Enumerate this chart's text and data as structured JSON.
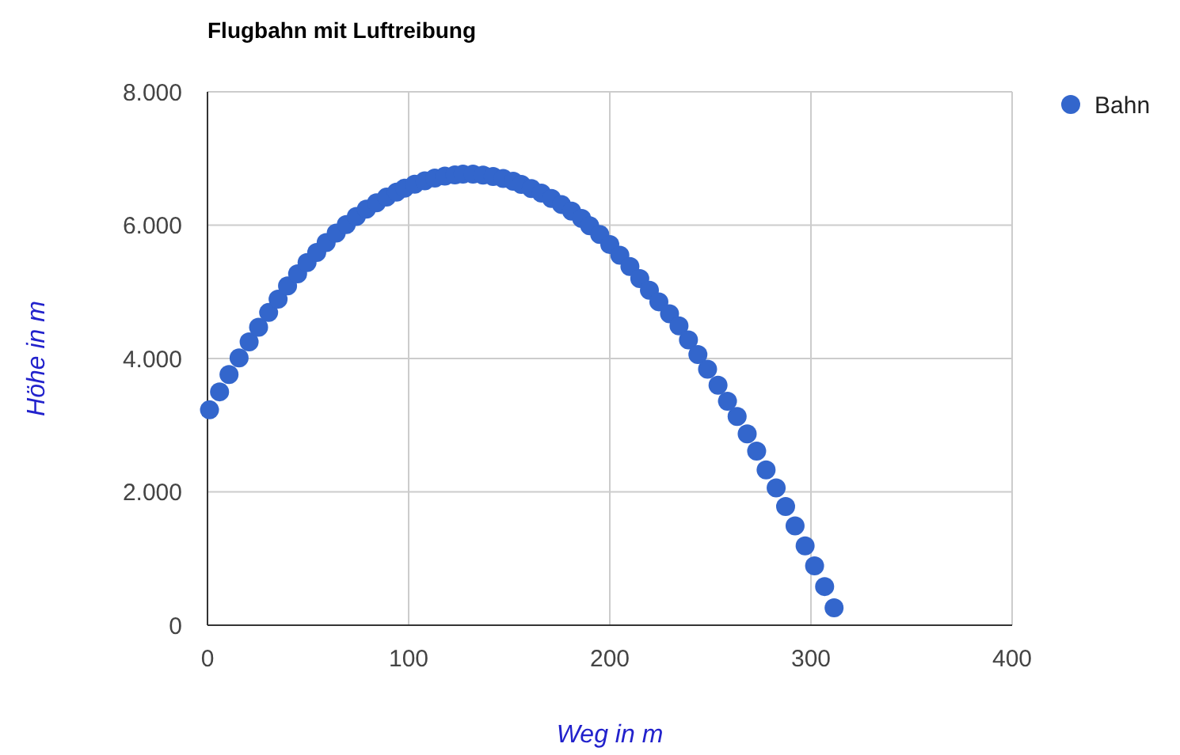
{
  "chart_data": {
    "type": "scatter",
    "title": "Flugbahn mit Luftreibung",
    "xlabel": "Weg in m",
    "ylabel": "Höhe in m",
    "xlim": [
      0,
      400
    ],
    "xticks": [
      0,
      100,
      200,
      300,
      400
    ],
    "ylim": [
      0,
      8000
    ],
    "yticks": [
      0,
      {
        "value": 2000,
        "label": "2.000"
      },
      {
        "value": 4000,
        "label": "4.000"
      },
      {
        "value": 6000,
        "label": "6.000"
      },
      {
        "value": 8000,
        "label": "8.000"
      }
    ],
    "grid": true,
    "legend": "top right",
    "marker": "circle",
    "series": [
      {
        "name": "Bahn",
        "color": "#3366cc",
        "x": [
          1,
          6,
          10.7,
          15.7,
          20.7,
          25.4,
          30.4,
          35.1,
          39.8,
          44.8,
          49.5,
          54.3,
          59,
          64,
          69,
          74,
          79,
          84,
          89,
          94,
          98,
          103,
          108,
          113,
          118,
          123,
          127,
          132,
          137,
          142,
          147,
          152,
          156,
          161,
          166,
          171,
          176,
          181,
          186,
          190,
          195,
          200,
          205,
          210,
          214.9,
          219.7,
          224.4,
          229.7,
          234.4,
          239.1,
          243.8,
          248.6,
          253.8,
          258.5,
          263.3,
          268.3,
          273,
          277.7,
          282.7,
          287.4,
          292.1,
          297.1,
          301.8,
          306.8,
          311.5
        ],
        "values": [
          3230,
          3500,
          3760,
          4010,
          4250,
          4470,
          4690,
          4890,
          5090,
          5270,
          5440,
          5590,
          5740,
          5880,
          6010,
          6130,
          6240,
          6335,
          6420,
          6495,
          6555,
          6615,
          6665,
          6705,
          6735,
          6755,
          6765,
          6765,
          6750,
          6730,
          6700,
          6660,
          6610,
          6550,
          6480,
          6400,
          6310,
          6210,
          6100,
          5990,
          5860,
          5710,
          5550,
          5380,
          5200,
          5025,
          4850,
          4670,
          4490,
          4280,
          4060,
          3840,
          3600,
          3360,
          3130,
          2870,
          2610,
          2330,
          2060,
          1780,
          1490,
          1190,
          890,
          580,
          260
        ]
      }
    ]
  }
}
